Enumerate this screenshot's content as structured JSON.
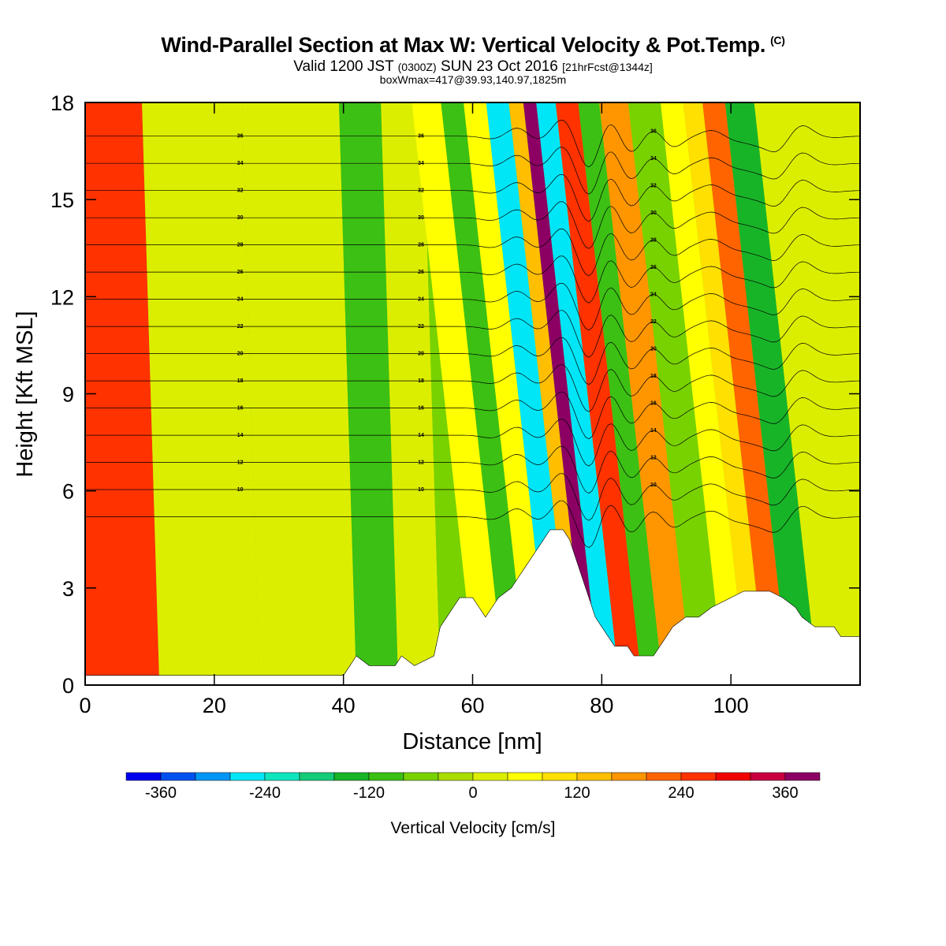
{
  "header": {
    "title": "Wind-Parallel Section at Max W: Vertical Velocity & Pot.Temp.",
    "copyright": "(C)",
    "valid_prefix": "Valid 1200 JST",
    "valid_zulu": "(0300Z)",
    "valid_date": "SUN 23 Oct 2016",
    "forecast": "[21hrFcst@1344z]",
    "boxwmax": "boxWmax=417@39.93,140.97,1825m"
  },
  "chart_data": {
    "type": "heatmap",
    "xlabel": "Distance [nm]",
    "ylabel": "Height [Kft MSL]",
    "xlim": [
      0,
      120
    ],
    "ylim": [
      0,
      18
    ],
    "xticks": [
      "0",
      "20",
      "40",
      "60",
      "80",
      "100"
    ],
    "yticks": [
      "0",
      "3",
      "6",
      "9",
      "12",
      "15",
      "18"
    ],
    "colorbar": {
      "title": "Vertical Velocity [cm/s]",
      "levels": [
        -400,
        -360,
        -320,
        -280,
        -240,
        -200,
        -160,
        -120,
        -80,
        -40,
        0,
        40,
        80,
        120,
        160,
        200,
        240,
        280,
        320,
        360,
        400
      ],
      "colors": [
        "#0000ee",
        "#0050f0",
        "#0096f5",
        "#00e6f6",
        "#10e6be",
        "#14cc78",
        "#18b428",
        "#3cc014",
        "#78d200",
        "#aadc00",
        "#dcee00",
        "#ffff00",
        "#ffe000",
        "#ffbe00",
        "#ff9600",
        "#ff6400",
        "#ff3200",
        "#f00000",
        "#c80040",
        "#8c0064"
      ],
      "tick_labels": [
        "-360",
        "-240",
        "-120",
        "0",
        "120",
        "240",
        "360"
      ],
      "tick_values": [
        -360,
        -240,
        -120,
        0,
        120,
        240,
        360
      ]
    },
    "vertical_velocity_bands": [
      {
        "x": 8,
        "w": 240
      },
      {
        "x": 15,
        "w": 0
      },
      {
        "x": 39,
        "w": 20
      },
      {
        "x": 45,
        "w": -110
      },
      {
        "x": 52,
        "w": 30
      },
      {
        "x": 58,
        "w": -60
      },
      {
        "x": 63,
        "w": 40
      },
      {
        "x": 67,
        "w": -120
      },
      {
        "x": 70,
        "w": 60
      },
      {
        "x": 74,
        "w": -250
      },
      {
        "x": 77,
        "w": 140
      },
      {
        "x": 78.5,
        "w": 380
      },
      {
        "x": 81,
        "w": -270
      },
      {
        "x": 84.5,
        "w": 240
      },
      {
        "x": 88,
        "w": -110
      },
      {
        "x": 91,
        "w": 160
      },
      {
        "x": 97,
        "w": -80
      },
      {
        "x": 101,
        "w": 60
      },
      {
        "x": 104,
        "w": 100
      },
      {
        "x": 107,
        "w": 200
      },
      {
        "x": 111,
        "w": -150
      },
      {
        "x": 116,
        "w": 20
      }
    ],
    "terrain_kft": [
      [
        0,
        0.3
      ],
      [
        5,
        0.3
      ],
      [
        10,
        0.3
      ],
      [
        20,
        0.3
      ],
      [
        30,
        0.3
      ],
      [
        36,
        0.3
      ],
      [
        40,
        0.3
      ],
      [
        41,
        0.6
      ],
      [
        42,
        0.9
      ],
      [
        44,
        0.6
      ],
      [
        48,
        0.6
      ],
      [
        49,
        0.9
      ],
      [
        51,
        0.6
      ],
      [
        54,
        0.9
      ],
      [
        55,
        1.8
      ],
      [
        56,
        2.1
      ],
      [
        57,
        2.4
      ],
      [
        58,
        2.7
      ],
      [
        60,
        2.7
      ],
      [
        61,
        2.4
      ],
      [
        62,
        2.1
      ],
      [
        63,
        2.4
      ],
      [
        64,
        2.7
      ],
      [
        66,
        3.0
      ],
      [
        67,
        3.3
      ],
      [
        68,
        3.6
      ],
      [
        69,
        3.9
      ],
      [
        70,
        4.2
      ],
      [
        71,
        4.5
      ],
      [
        72,
        4.8
      ],
      [
        74,
        4.8
      ],
      [
        75,
        4.5
      ],
      [
        76,
        3.9
      ],
      [
        77,
        3.3
      ],
      [
        78,
        2.7
      ],
      [
        79,
        2.1
      ],
      [
        80,
        1.8
      ],
      [
        81,
        1.5
      ],
      [
        82,
        1.2
      ],
      [
        84,
        1.2
      ],
      [
        85,
        0.9
      ],
      [
        88,
        0.9
      ],
      [
        89,
        1.2
      ],
      [
        90,
        1.5
      ],
      [
        91,
        1.8
      ],
      [
        93,
        2.1
      ],
      [
        95,
        2.1
      ],
      [
        97,
        2.4
      ],
      [
        100,
        2.7
      ],
      [
        102,
        2.9
      ],
      [
        106,
        2.9
      ],
      [
        108,
        2.7
      ],
      [
        110,
        2.4
      ],
      [
        111,
        2.1
      ],
      [
        113,
        1.8
      ],
      [
        116,
        1.8
      ],
      [
        117,
        1.5
      ],
      [
        119,
        1.5
      ],
      [
        120,
        1.5
      ]
    ],
    "theta_contours_c": {
      "min": 8,
      "max": 36,
      "step": 2,
      "label_levels": [
        "36",
        "34",
        "32",
        "30",
        "28",
        "26",
        "24",
        "22",
        "20",
        "18",
        "16",
        "14",
        "12",
        "10"
      ]
    }
  }
}
